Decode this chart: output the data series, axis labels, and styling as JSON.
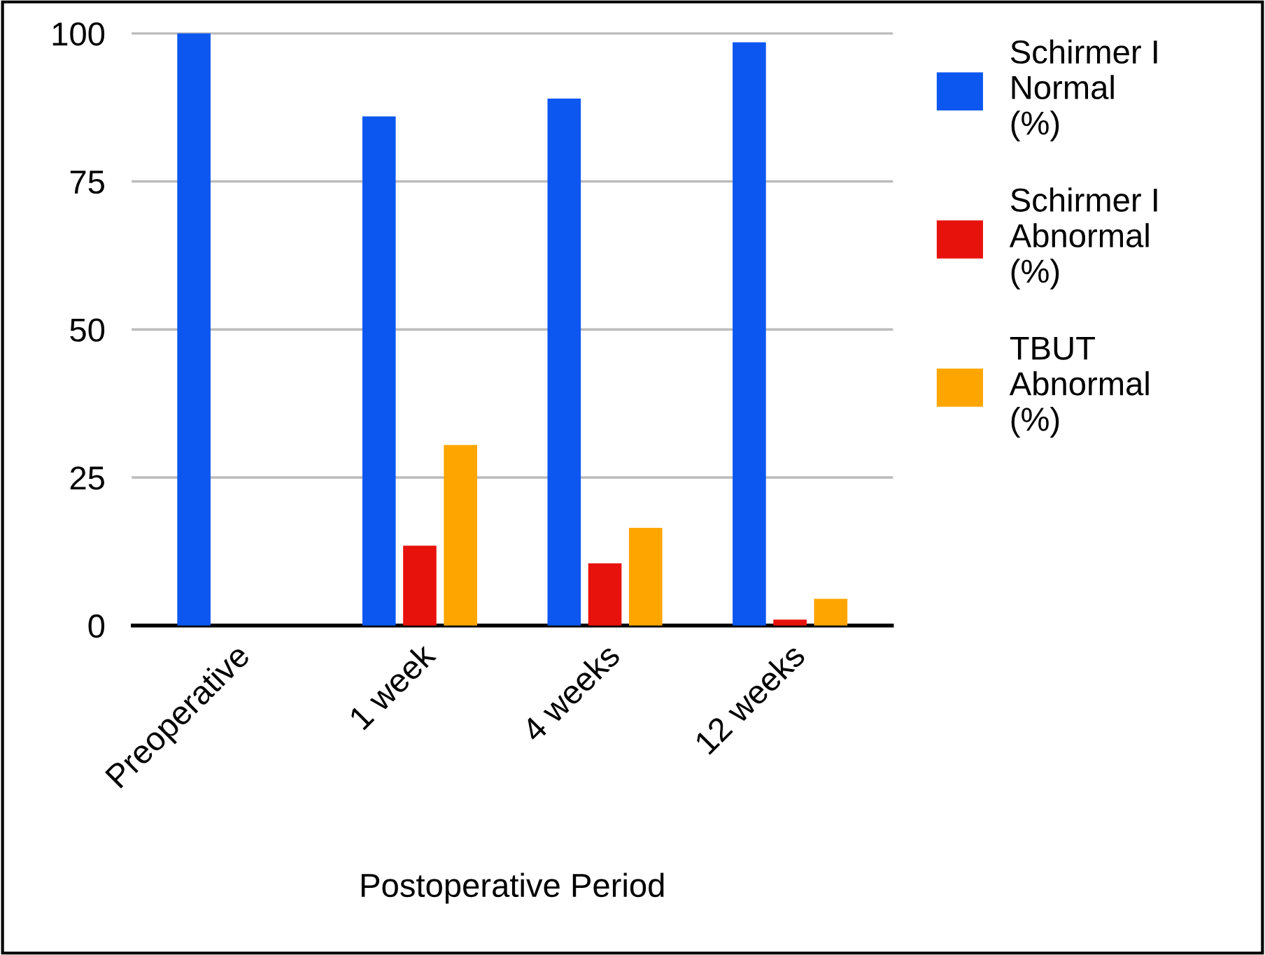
{
  "chart_data": {
    "type": "bar",
    "xlabel": "Postoperative Period",
    "categories": [
      "Preoperative",
      "1 week",
      "4 weeks",
      "12 weeks"
    ],
    "series": [
      {
        "name": "Schirmer I\nNormal\n(%)",
        "color": "#0b57f0",
        "values": [
          100,
          86,
          89,
          98.5
        ]
      },
      {
        "name": "Schirmer I\nAbnormal\n(%)",
        "color": "#e8120c",
        "values": [
          0,
          13.5,
          10.5,
          1
        ]
      },
      {
        "name": "TBUT\nAbnormal\n(%)",
        "color": "#ffa500",
        "values": [
          0,
          30.5,
          16.5,
          4.5
        ]
      }
    ],
    "ylim": [
      0,
      100
    ],
    "yticks": [
      0,
      25,
      50,
      75,
      100
    ],
    "grid": "y",
    "legend": "right"
  }
}
